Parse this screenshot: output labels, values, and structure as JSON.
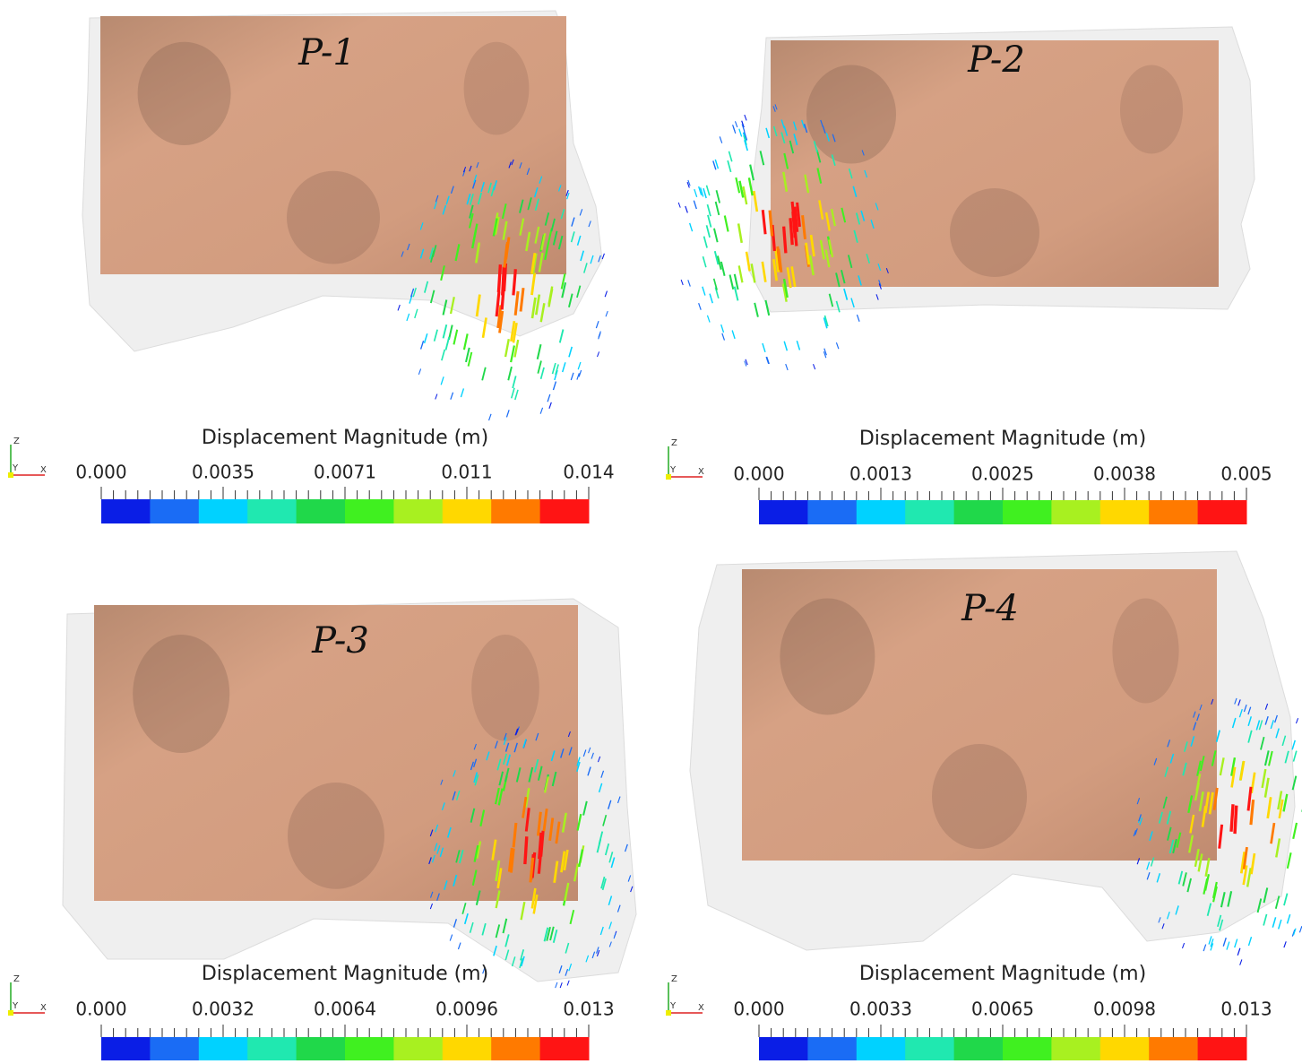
{
  "panels": [
    {
      "label": "P-1",
      "colorbar": {
        "title": "Displacement Magnitude (m)",
        "ticks": [
          "0.000",
          "0.0035",
          "0.0071",
          "0.011",
          "0.014"
        ]
      },
      "axes": {
        "z": "Z",
        "y": "Y",
        "x": "X"
      }
    },
    {
      "label": "P-2",
      "colorbar": {
        "title": "Displacement Magnitude (m)",
        "ticks": [
          "0.000",
          "0.0013",
          "0.0025",
          "0.0038",
          "0.005"
        ]
      },
      "axes": {
        "z": "Z",
        "y": "Y",
        "x": "X"
      }
    },
    {
      "label": "P-3",
      "colorbar": {
        "title": "Displacement Magnitude (m)",
        "ticks": [
          "0.000",
          "0.0032",
          "0.0064",
          "0.0096",
          "0.013"
        ]
      },
      "axes": {
        "z": "Z",
        "y": "Y",
        "x": "X"
      }
    },
    {
      "label": "P-4",
      "colorbar": {
        "title": "Displacement Magnitude (m)",
        "ticks": [
          "0.000",
          "0.0033",
          "0.0065",
          "0.0098",
          "0.013"
        ]
      },
      "axes": {
        "z": "Z",
        "y": "Y",
        "x": "X"
      }
    }
  ]
}
